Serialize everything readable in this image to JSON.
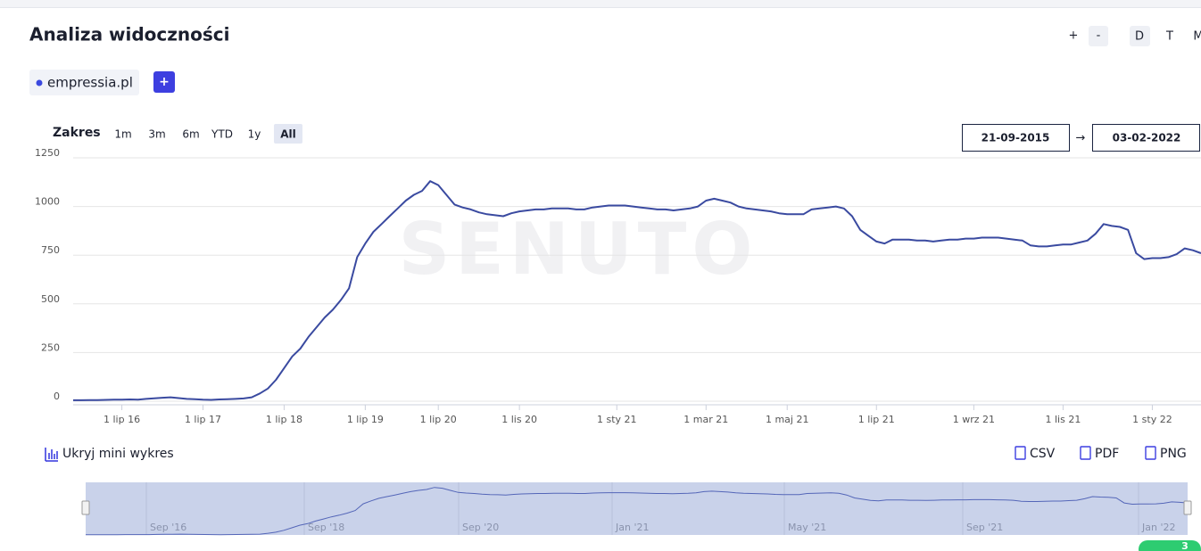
{
  "header": {
    "title": "Analiza widoczności",
    "zoom_buttons": [
      "+",
      "-"
    ],
    "view_buttons": [
      "D",
      "T",
      "M"
    ]
  },
  "domains": {
    "items": [
      "empressia.pl"
    ],
    "add": "+"
  },
  "range": {
    "label": "Zakres",
    "buttons": [
      "1m",
      "3m",
      "6m",
      "YTD",
      "1y",
      "All"
    ],
    "selected": 5
  },
  "dates": {
    "from": "21-09-2015",
    "arrow": "→",
    "to": "03-02-2022"
  },
  "chart_data": {
    "type": "line",
    "watermark": "SENUTO",
    "color": "#3a4aa0",
    "categories": [
      null,
      null,
      null,
      null,
      null,
      null,
      "1 lip 16",
      null,
      null,
      null,
      null,
      null,
      null,
      null,
      null,
      null,
      "1 lip 17",
      null,
      null,
      null,
      null,
      null,
      null,
      null,
      null,
      null,
      "1 lip 18",
      null,
      null,
      null,
      null,
      null,
      null,
      null,
      null,
      null,
      "1 lip 19",
      null,
      null,
      null,
      null,
      null,
      null,
      null,
      null,
      "1 lip 20",
      null,
      null,
      null,
      null,
      null,
      null,
      null,
      null,
      null,
      "1 lis 20",
      null,
      null,
      null,
      null,
      null,
      null,
      null,
      null,
      null,
      null,
      null,
      "1 sty 21",
      null,
      null,
      null,
      null,
      null,
      null,
      null,
      null,
      null,
      null,
      "1 mar 21",
      null,
      null,
      null,
      null,
      null,
      null,
      null,
      null,
      null,
      "1 maj 21",
      null,
      null,
      null,
      null,
      null,
      null,
      null,
      null,
      null,
      null,
      "1 lip 21",
      null,
      null,
      null,
      null,
      null,
      null,
      null,
      null,
      null,
      null,
      null,
      "1 wrz 21",
      null,
      null,
      null,
      null,
      null,
      null,
      null,
      null,
      null,
      null,
      "1 lis 21",
      null,
      null,
      null,
      null,
      null,
      null,
      null,
      null,
      null,
      null,
      "1 sty 22",
      null,
      null,
      null,
      null,
      null,
      null
    ],
    "values": [
      5,
      5,
      6,
      6,
      7,
      8,
      8,
      9,
      8,
      12,
      15,
      18,
      20,
      16,
      12,
      10,
      8,
      7,
      9,
      10,
      12,
      14,
      20,
      40,
      65,
      110,
      170,
      230,
      270,
      330,
      380,
      430,
      470,
      520,
      580,
      740,
      810,
      870,
      910,
      950,
      990,
      1030,
      1060,
      1080,
      1130,
      1110,
      1060,
      1010,
      995,
      985,
      970,
      960,
      955,
      950,
      965,
      975,
      980,
      985,
      985,
      990,
      990,
      990,
      985,
      985,
      995,
      1000,
      1005,
      1005,
      1005,
      1000,
      995,
      990,
      985,
      985,
      980,
      985,
      990,
      1000,
      1030,
      1040,
      1030,
      1020,
      1000,
      990,
      985,
      980,
      975,
      965,
      960,
      960,
      960,
      985,
      990,
      995,
      1000,
      990,
      950,
      880,
      850,
      820,
      810,
      830,
      830,
      830,
      825,
      825,
      820,
      825,
      830,
      830,
      835,
      835,
      840,
      840,
      840,
      835,
      830,
      825,
      800,
      795,
      795,
      800,
      805,
      805,
      815,
      825,
      860,
      910,
      900,
      895,
      880,
      760,
      730,
      735,
      735,
      740,
      755,
      785,
      775,
      760
    ],
    "ylim": [
      0,
      1250
    ],
    "yticks": [
      0,
      250,
      500,
      750,
      1000,
      1250
    ],
    "grid": true
  },
  "navigator": {
    "toggle": "Ukryj mini wykres",
    "labels": [
      "Sep '16",
      "Sep '18",
      "Sep '20",
      "Jan '21",
      "May '21",
      "Sep '21",
      "Jan '22"
    ]
  },
  "export": [
    "CSV",
    "PDF",
    "PNG"
  ],
  "badge": "3"
}
